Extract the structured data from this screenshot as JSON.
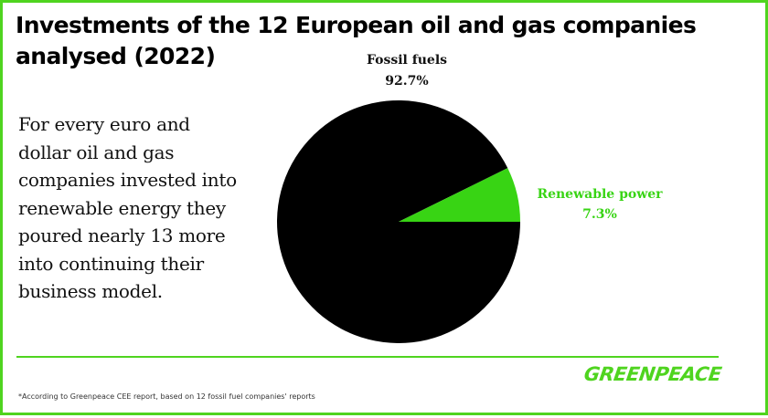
{
  "title": "Investments of the 12 European oil and gas companies analysed (2022)",
  "body_text": "For every euro and dollar oil and gas companies invested into renewable energy they poured nearly 13 more into continuing their business model.",
  "footnote": "*According to Greenpeace CEE report, based on 12 fossil fuel companies' reports",
  "logo_text": "GREENPEACE",
  "colors": {
    "accent": "#4fd41f",
    "fossil": "#000000",
    "renewable": "#38d414"
  },
  "chart_data": {
    "type": "pie",
    "title": "Investments of the 12 European oil and gas companies analysed (2022)",
    "slices": [
      {
        "name": "Fossil fuels",
        "value": 92.7,
        "label": "92.7%",
        "color": "#000000"
      },
      {
        "name": "Renewable power",
        "value": 7.3,
        "label": "7.3%",
        "color": "#38d414"
      }
    ]
  }
}
